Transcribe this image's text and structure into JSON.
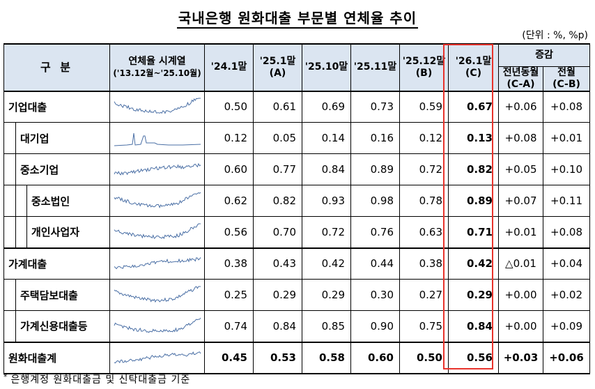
{
  "title": "국내은행 원화대출 부문별 연체율 추이",
  "unit": "(단위 : %, %p)",
  "header": {
    "category": "구    분",
    "spark_line1": "연체율 시계열",
    "spark_line2": "('13.12월~'25.10월)",
    "cols": [
      {
        "l1": "'24.1말",
        "l2": ""
      },
      {
        "l1": "'25.1말",
        "l2": "(A)"
      },
      {
        "l1": "'25.10말",
        "l2": ""
      },
      {
        "l1": "'25.11말",
        "l2": ""
      },
      {
        "l1": "'25.12말",
        "l2": "(B)"
      },
      {
        "l1": "'26.1말",
        "l2": "(C)"
      }
    ],
    "change_group": "증감",
    "change_cols": [
      {
        "l1": "전년동월",
        "l2": "(C-A)"
      },
      {
        "l1": "전월",
        "l2": "(C-B)"
      }
    ]
  },
  "rows": [
    {
      "label": "기업대출",
      "values": [
        "0.50",
        "0.61",
        "0.69",
        "0.73",
        "0.59",
        "0.67"
      ],
      "changes": [
        "+0.06",
        "+0.08"
      ]
    },
    {
      "label": "대기업",
      "values": [
        "0.12",
        "0.05",
        "0.14",
        "0.16",
        "0.12",
        "0.13"
      ],
      "changes": [
        "+0.08",
        "+0.01"
      ]
    },
    {
      "label": "중소기업",
      "values": [
        "0.60",
        "0.77",
        "0.84",
        "0.89",
        "0.72",
        "0.82"
      ],
      "changes": [
        "+0.05",
        "+0.10"
      ]
    },
    {
      "label": "중소법인",
      "values": [
        "0.62",
        "0.82",
        "0.93",
        "0.98",
        "0.78",
        "0.89"
      ],
      "changes": [
        "+0.07",
        "+0.11"
      ]
    },
    {
      "label": "개인사업자",
      "values": [
        "0.56",
        "0.70",
        "0.72",
        "0.76",
        "0.63",
        "0.71"
      ],
      "changes": [
        "+0.01",
        "+0.08"
      ]
    },
    {
      "label": "가계대출",
      "values": [
        "0.38",
        "0.43",
        "0.42",
        "0.44",
        "0.38",
        "0.42"
      ],
      "changes": [
        "△0.01",
        "+0.04"
      ]
    },
    {
      "label": "주택담보대출",
      "values": [
        "0.25",
        "0.29",
        "0.29",
        "0.30",
        "0.27",
        "0.29"
      ],
      "changes": [
        "+0.00",
        "+0.02"
      ]
    },
    {
      "label": "가계신용대출등",
      "values": [
        "0.74",
        "0.84",
        "0.85",
        "0.90",
        "0.75",
        "0.84"
      ],
      "changes": [
        "+0.00",
        "+0.09"
      ]
    },
    {
      "label": "원화대출계",
      "values": [
        "0.45",
        "0.53",
        "0.58",
        "0.60",
        "0.50",
        "0.56"
      ],
      "changes": [
        "+0.03",
        "+0.06"
      ]
    }
  ],
  "sparkline_color": "#4a6fa5",
  "highlight_color": "#e8332c",
  "footnote": "은행계정 원화대출금 및 신탁대출금 기준"
}
